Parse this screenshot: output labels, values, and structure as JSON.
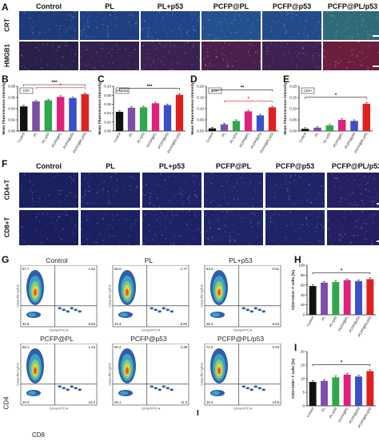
{
  "figure": {
    "panel_letters": [
      "A",
      "B",
      "C",
      "D",
      "E",
      "F",
      "G",
      "H",
      "I",
      "I"
    ],
    "groups": [
      "Control",
      "PL",
      "PL+p53",
      "PCFP@PL",
      "PCFP@p53",
      "PCFP@PL/p53"
    ],
    "panel_A": {
      "rows": [
        "CRT",
        "HMGB1"
      ],
      "tile_colors": [
        [
          "#1d3a7a",
          "#1f3f82",
          "#1f4488",
          "#24508e",
          "#234a8a",
          "#2f6a78"
        ],
        [
          "#2a1f4a",
          "#33204c",
          "#3a2152",
          "#4a1f4a",
          "#3e2150",
          "#6a1d3c"
        ]
      ]
    },
    "panel_F": {
      "rows": [
        "CD4+T",
        "CD8+T"
      ],
      "tile_colors": [
        [
          "#1a1f5e",
          "#1c2162",
          "#1d2366",
          "#1f2569",
          "#1e2467",
          "#261f63"
        ],
        [
          "#1a1e5c",
          "#1b2060",
          "#1c2264",
          "#1e2466",
          "#1d2365",
          "#231f61"
        ]
      ]
    },
    "panel_G": {
      "titles": [
        "Control",
        "PL",
        "PL+p53",
        "PCFP@PL",
        "PCFP@p53",
        "PCFP@PL/p53"
      ],
      "quadrants": [
        [
          "57.7",
          "1.61",
          "31.8",
          "8.84"
        ],
        [
          "65.9",
          "1.77",
          "23.4",
          "8.93"
        ],
        [
          "63.4",
          "0.61",
          "26.4",
          "9.53"
        ],
        [
          "66.1",
          "1.42",
          "20.3",
          "12.2"
        ],
        [
          "60.2",
          "2.38",
          "26.1",
          "11.3"
        ],
        [
          "71.0",
          "0.03",
          "16.3",
          "13.6"
        ]
      ],
      "y_axis": "Comp-PE-Cy5-A",
      "x_axis": "Comp-FITC-A",
      "outer_y_label": "CD4",
      "outer_x_label": "CD8"
    }
  },
  "chart_data": [
    {
      "panel": "B",
      "type": "bar",
      "legend_box": "CRT",
      "ylabel": "Mean Fluorescence Intensity",
      "ylim": [
        0,
        0.08
      ],
      "yticks": [
        "0.00",
        "0.02",
        "0.04",
        "0.06",
        "0.08"
      ],
      "categories": [
        "Control",
        "PL",
        "PL+p53",
        "PCFP@PL",
        "PCFP@p53",
        "PCFP@PL/p53"
      ],
      "values": [
        0.044,
        0.053,
        0.055,
        0.061,
        0.059,
        0.066
      ],
      "colors": [
        "#111111",
        "#7b4fa8",
        "#2ea84a",
        "#e0207a",
        "#3a4fc8",
        "#e02020"
      ],
      "annotations": [
        "***",
        "*"
      ]
    },
    {
      "panel": "C",
      "type": "bar",
      "legend_box": "HMGB1",
      "ylabel": "Mean Fluorescence Intensity",
      "ylim": [
        0,
        0.1
      ],
      "yticks": [
        "0.00",
        "0.02",
        "0.04",
        "0.06",
        "0.08",
        "0.10"
      ],
      "categories": [
        "Control",
        "PL",
        "PL+p53",
        "PCFP@PL",
        "PCFP@p53",
        "PCFP@PL/p53"
      ],
      "values": [
        0.043,
        0.052,
        0.053,
        0.062,
        0.058,
        0.081
      ],
      "colors": [
        "#111111",
        "#7b4fa8",
        "#2ea84a",
        "#e0207a",
        "#3a4fc8",
        "#e02020"
      ],
      "annotations": [
        "***"
      ]
    },
    {
      "panel": "D",
      "type": "bar",
      "legend_box": "CD8+",
      "ylabel": "Mean Fluorescence Intensity",
      "ylim": [
        0,
        0.2
      ],
      "yticks": [
        "0.00",
        "0.05",
        "0.10",
        "0.15",
        "0.20"
      ],
      "categories": [
        "Control",
        "PL",
        "PL+p53",
        "PCFP@PL",
        "PCFP@p53",
        "PCFP@PL/p53"
      ],
      "values": [
        0.012,
        0.03,
        0.045,
        0.088,
        0.07,
        0.106
      ],
      "colors": [
        "#111111",
        "#7b4fa8",
        "#2ea84a",
        "#e0207a",
        "#3a4fc8",
        "#e02020"
      ],
      "annotations": [
        "**",
        "*"
      ]
    },
    {
      "panel": "E",
      "type": "bar",
      "legend_box": "CD4+",
      "ylabel": "Mean Fluorescence Intensity",
      "ylim": [
        0,
        0.2
      ],
      "yticks": [
        "0.00",
        "0.05",
        "0.10",
        "0.15",
        "0.20"
      ],
      "categories": [
        "Control",
        "PL",
        "PL+p53",
        "PCFP@PL",
        "PCFP@p53",
        "PCFP@PL/p53"
      ],
      "values": [
        0.01,
        0.015,
        0.025,
        0.05,
        0.045,
        0.122
      ],
      "colors": [
        "#111111",
        "#7b4fa8",
        "#2ea84a",
        "#e0207a",
        "#3a4fc8",
        "#e02020"
      ],
      "annotations": [
        "*"
      ]
    },
    {
      "panel": "H",
      "type": "bar",
      "ylabel": "CD3+CD4+ T cells (%)",
      "ylim": [
        0,
        100
      ],
      "yticks": [
        "0",
        "20",
        "40",
        "60",
        "80",
        "100"
      ],
      "categories": [
        "Control",
        "PL",
        "PL+p53",
        "PCFP@PL",
        "PCFP@p53",
        "PCFP@PL/p53"
      ],
      "values": [
        58,
        65,
        66,
        70,
        68,
        72
      ],
      "colors": [
        "#111111",
        "#7b4fa8",
        "#2ea84a",
        "#e0207a",
        "#3a4fc8",
        "#e02020"
      ],
      "annotations": [
        "*"
      ]
    },
    {
      "panel": "I",
      "type": "bar",
      "ylabel": "CD3+CD8+ T cells (%)",
      "ylim": [
        0,
        20
      ],
      "yticks": [
        "0",
        "5",
        "10",
        "15",
        "20"
      ],
      "categories": [
        "Control",
        "PL",
        "PL+p53",
        "PCFP@PL",
        "PCFP@p53",
        "PCFP@PL/p53"
      ],
      "values": [
        8.8,
        9.2,
        10.5,
        11.5,
        10.8,
        12.8
      ],
      "colors": [
        "#111111",
        "#7b4fa8",
        "#2ea84a",
        "#e0207a",
        "#3a4fc8",
        "#e02020"
      ],
      "annotations": [
        "*"
      ]
    }
  ]
}
